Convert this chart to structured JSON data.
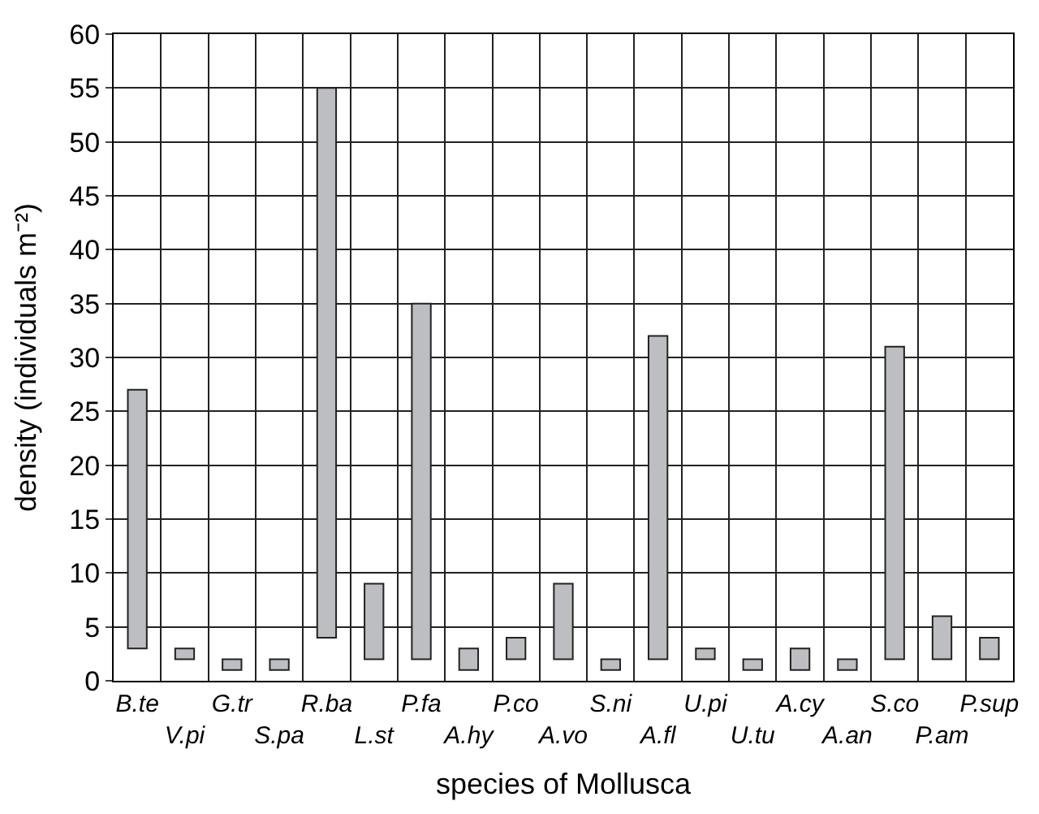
{
  "chart_data": {
    "type": "bar",
    "xlabel": "species of Mollusca",
    "ylabel": "density (individuals m⁻²)",
    "categories": [
      "B.te",
      "V.pi",
      "G.tr",
      "S.pa",
      "R.ba",
      "L.st",
      "P.fa",
      "A.hy",
      "P.co",
      "A.vo",
      "S.ni",
      "A.fl",
      "U.pi",
      "U.tu",
      "A.cy",
      "A.an",
      "S.co",
      "P.am",
      "P.sup"
    ],
    "base": [
      3,
      2,
      1,
      1,
      4,
      2,
      2,
      1,
      2,
      2,
      1,
      2,
      2,
      1,
      1,
      1,
      2,
      2,
      2
    ],
    "values": [
      24,
      1,
      1,
      1,
      51,
      7,
      33,
      2,
      2,
      7,
      1,
      30,
      1,
      1,
      2,
      1,
      29,
      4,
      2
    ],
    "color": "#bdbec2",
    "ylim": [
      0,
      60
    ],
    "yticks": [
      0,
      5,
      10,
      15,
      20,
      25,
      30,
      35,
      40,
      45,
      50,
      55,
      60
    ],
    "grid": true
  }
}
